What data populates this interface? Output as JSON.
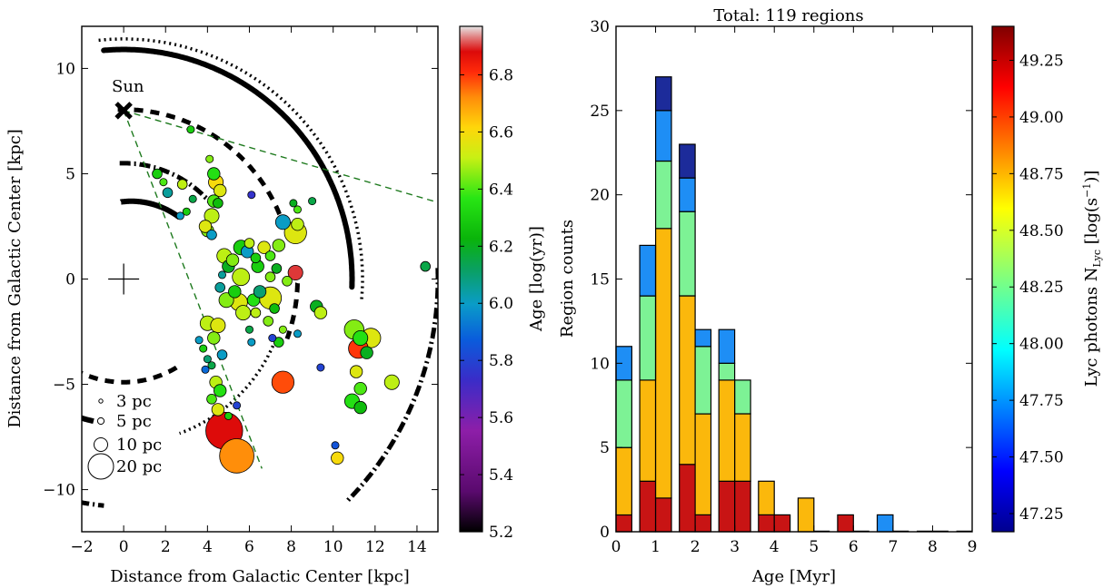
{
  "chart_data": [
    {
      "type": "scatter",
      "title": "",
      "xlabel": "Distance from Galactic Center [kpc]",
      "ylabel": "Distance from Galactic Center [kpc]",
      "xlim": [
        -2,
        15
      ],
      "ylim": [
        -12,
        12
      ],
      "x_ticks": [
        "−2",
        "0",
        "2",
        "4",
        "6",
        "8",
        "10",
        "12",
        "14"
      ],
      "y_ticks": [
        "−10",
        "−5",
        "0",
        "5",
        "10"
      ],
      "sun_label": "Sun",
      "sun_position": [
        0,
        8
      ],
      "galactic_center": [
        0,
        0
      ],
      "colorbar": {
        "label": "Age [log(yr)]",
        "range": [
          5.2,
          6.97
        ],
        "ticks": [
          "5.2",
          "5.4",
          "5.6",
          "5.8",
          "6.0",
          "6.2",
          "6.4",
          "6.6",
          "6.8"
        ]
      },
      "size_legend": [
        "3 pc",
        "5 pc",
        "10 pc",
        "20 pc"
      ],
      "points": [
        {
          "x": 3.2,
          "y": 7.1,
          "size": 3,
          "age": 6.3
        },
        {
          "x": 4.1,
          "y": 5.7,
          "size": 3,
          "age": 6.45
        },
        {
          "x": 4.3,
          "y": 5.0,
          "size": 5,
          "age": 6.35
        },
        {
          "x": 4.4,
          "y": 4.6,
          "size": 6,
          "age": 6.6
        },
        {
          "x": 4.6,
          "y": 4.2,
          "size": 5,
          "age": 6.55
        },
        {
          "x": 4.3,
          "y": 3.7,
          "size": 5,
          "age": 6.4
        },
        {
          "x": 4.5,
          "y": 3.6,
          "size": 4,
          "age": 6.25
        },
        {
          "x": 4.2,
          "y": 3.0,
          "size": 6,
          "age": 6.5
        },
        {
          "x": 1.6,
          "y": 5.0,
          "size": 4,
          "age": 6.3
        },
        {
          "x": 1.9,
          "y": 4.6,
          "size": 3,
          "age": 6.4
        },
        {
          "x": 2.1,
          "y": 4.1,
          "size": 4,
          "age": 6.05
        },
        {
          "x": 2.8,
          "y": 4.5,
          "size": 4,
          "age": 6.5
        },
        {
          "x": 3.3,
          "y": 3.8,
          "size": 3,
          "age": 6.15
        },
        {
          "x": 3.0,
          "y": 3.2,
          "size": 3,
          "age": 6.3
        },
        {
          "x": 2.7,
          "y": 3.0,
          "size": 3,
          "age": 6.0
        },
        {
          "x": 4.0,
          "y": 2.3,
          "size": 5,
          "age": 6.45
        },
        {
          "x": 4.2,
          "y": 2.1,
          "size": 4,
          "age": 6.0
        },
        {
          "x": 3.9,
          "y": 2.5,
          "size": 5,
          "age": 6.55
        },
        {
          "x": 4.8,
          "y": 1.1,
          "size": 6,
          "age": 6.5
        },
        {
          "x": 5.0,
          "y": 0.6,
          "size": 5,
          "age": 6.2
        },
        {
          "x": 5.2,
          "y": 0.9,
          "size": 5,
          "age": 6.45
        },
        {
          "x": 5.6,
          "y": 1.5,
          "size": 6,
          "age": 6.3
        },
        {
          "x": 5.9,
          "y": 1.3,
          "size": 5,
          "age": 6.0
        },
        {
          "x": 6.0,
          "y": 1.7,
          "size": 4,
          "age": 6.5
        },
        {
          "x": 6.3,
          "y": 1.0,
          "size": 4,
          "age": 6.3
        },
        {
          "x": 6.7,
          "y": 1.5,
          "size": 5,
          "age": 6.55
        },
        {
          "x": 7.0,
          "y": 1.1,
          "size": 4,
          "age": 6.4
        },
        {
          "x": 7.4,
          "y": 1.6,
          "size": 5,
          "age": 6.45
        },
        {
          "x": 7.6,
          "y": 2.7,
          "size": 6,
          "age": 6.0
        },
        {
          "x": 8.2,
          "y": 2.2,
          "size": 9,
          "age": 6.55
        },
        {
          "x": 8.3,
          "y": 2.6,
          "size": 5,
          "age": 6.5
        },
        {
          "x": 8.3,
          "y": 3.3,
          "size": 3,
          "age": 6.4
        },
        {
          "x": 8.1,
          "y": 3.6,
          "size": 3,
          "age": 6.2
        },
        {
          "x": 9.0,
          "y": 3.7,
          "size": 3,
          "age": 6.15
        },
        {
          "x": 6.1,
          "y": 4.0,
          "size": 3,
          "age": 5.75
        },
        {
          "x": 4.7,
          "y": 0.2,
          "size": 3,
          "age": 6.05
        },
        {
          "x": 5.6,
          "y": 0.1,
          "size": 7,
          "age": 6.5
        },
        {
          "x": 6.4,
          "y": 0.6,
          "size": 5,
          "age": 6.3
        },
        {
          "x": 7.0,
          "y": 0.1,
          "size": 4,
          "age": 6.45
        },
        {
          "x": 7.3,
          "y": 0.5,
          "size": 4,
          "age": 6.2
        },
        {
          "x": 8.2,
          "y": 0.3,
          "size": 6,
          "age": 6.9
        },
        {
          "x": 7.8,
          "y": -0.1,
          "size": 4,
          "age": 6.45
        },
        {
          "x": 4.6,
          "y": -0.4,
          "size": 4,
          "age": 6.05
        },
        {
          "x": 4.9,
          "y": -1.0,
          "size": 6,
          "age": 6.45
        },
        {
          "x": 5.3,
          "y": -0.6,
          "size": 5,
          "age": 6.3
        },
        {
          "x": 5.5,
          "y": -1.1,
          "size": 7,
          "age": 6.55
        },
        {
          "x": 5.7,
          "y": -1.6,
          "size": 6,
          "age": 6.5
        },
        {
          "x": 6.2,
          "y": -1.0,
          "size": 5,
          "age": 6.35
        },
        {
          "x": 6.5,
          "y": -0.6,
          "size": 5,
          "age": 6.1
        },
        {
          "x": 7.0,
          "y": -0.9,
          "size": 9,
          "age": 6.55
        },
        {
          "x": 6.3,
          "y": -1.6,
          "size": 4,
          "age": 6.5
        },
        {
          "x": 7.2,
          "y": -1.4,
          "size": 4,
          "age": 6.25
        },
        {
          "x": 6.9,
          "y": -2.0,
          "size": 4,
          "age": 6.45
        },
        {
          "x": 6.0,
          "y": -2.4,
          "size": 3,
          "age": 6.15
        },
        {
          "x": 6.1,
          "y": -3.0,
          "size": 3,
          "age": 6.0
        },
        {
          "x": 7.1,
          "y": -2.8,
          "size": 3,
          "age": 5.8
        },
        {
          "x": 7.4,
          "y": -3.0,
          "size": 4,
          "age": 6.3
        },
        {
          "x": 8.3,
          "y": -2.6,
          "size": 3,
          "age": 6.0
        },
        {
          "x": 9.2,
          "y": -1.3,
          "size": 5,
          "age": 6.2
        },
        {
          "x": 9.4,
          "y": -1.6,
          "size": 5,
          "age": 6.5
        },
        {
          "x": 14.4,
          "y": 0.6,
          "size": 4,
          "age": 6.15
        },
        {
          "x": 4.0,
          "y": -2.1,
          "size": 6,
          "age": 6.5
        },
        {
          "x": 4.5,
          "y": -2.2,
          "size": 6,
          "age": 6.55
        },
        {
          "x": 4.3,
          "y": -2.8,
          "size": 5,
          "age": 6.45
        },
        {
          "x": 3.6,
          "y": -2.9,
          "size": 3,
          "age": 6.0
        },
        {
          "x": 3.8,
          "y": -3.3,
          "size": 3,
          "age": 6.3
        },
        {
          "x": 4.0,
          "y": -3.8,
          "size": 3,
          "age": 6.1
        },
        {
          "x": 4.2,
          "y": -4.1,
          "size": 3,
          "age": 6.15
        },
        {
          "x": 4.7,
          "y": -3.6,
          "size": 4,
          "age": 6.0
        },
        {
          "x": 3.9,
          "y": -4.3,
          "size": 3,
          "age": 5.9
        },
        {
          "x": 4.4,
          "y": -4.9,
          "size": 5,
          "age": 6.5
        },
        {
          "x": 4.6,
          "y": -5.3,
          "size": 5,
          "age": 6.35
        },
        {
          "x": 4.2,
          "y": -5.7,
          "size": 4,
          "age": 6.4
        },
        {
          "x": 4.5,
          "y": -6.2,
          "size": 5,
          "age": 6.55
        },
        {
          "x": 5.0,
          "y": -6.5,
          "size": 3,
          "age": 6.3
        },
        {
          "x": 5.4,
          "y": -6.0,
          "size": 3,
          "age": 5.8
        },
        {
          "x": 4.8,
          "y": -7.2,
          "size": 15,
          "age": 6.88
        },
        {
          "x": 5.4,
          "y": -8.4,
          "size": 14,
          "age": 6.72
        },
        {
          "x": 7.6,
          "y": -4.9,
          "size": 9,
          "age": 6.78
        },
        {
          "x": 9.4,
          "y": -4.2,
          "size": 3,
          "age": 5.8
        },
        {
          "x": 11.0,
          "y": -2.4,
          "size": 8,
          "age": 6.45
        },
        {
          "x": 11.3,
          "y": -2.8,
          "size": 6,
          "age": 6.35
        },
        {
          "x": 11.8,
          "y": -2.8,
          "size": 8,
          "age": 6.55
        },
        {
          "x": 11.2,
          "y": -3.3,
          "size": 8,
          "age": 6.8
        },
        {
          "x": 11.6,
          "y": -3.5,
          "size": 5,
          "age": 6.2
        },
        {
          "x": 11.1,
          "y": -4.4,
          "size": 5,
          "age": 6.55
        },
        {
          "x": 11.3,
          "y": -5.2,
          "size": 5,
          "age": 6.4
        },
        {
          "x": 10.9,
          "y": -5.8,
          "size": 6,
          "age": 6.35
        },
        {
          "x": 11.3,
          "y": -6.1,
          "size": 5,
          "age": 6.25
        },
        {
          "x": 12.8,
          "y": -4.9,
          "size": 6,
          "age": 6.5
        },
        {
          "x": 10.2,
          "y": -8.5,
          "size": 5,
          "age": 6.6
        },
        {
          "x": 10.1,
          "y": -7.9,
          "size": 3,
          "age": 5.85
        },
        {
          "x": 7.6,
          "y": -2.4,
          "size": 3,
          "age": 6.45
        }
      ]
    },
    {
      "type": "bar",
      "stacked": true,
      "title": "Total: 119 regions",
      "xlabel": "Age [Myr]",
      "ylabel": "Region counts",
      "xlim": [
        0,
        9
      ],
      "ylim": [
        0,
        30
      ],
      "x_ticks": [
        "0",
        "1",
        "2",
        "3",
        "4",
        "5",
        "6",
        "7",
        "8",
        "9"
      ],
      "y_ticks": [
        "0",
        "5",
        "10",
        "15",
        "20",
        "25",
        "30"
      ],
      "bin_width": 0.4,
      "bin_starts": [
        0.0,
        0.6,
        1.0,
        1.6,
        2.0,
        2.6,
        3.0,
        3.6,
        4.0,
        4.6,
        5.0,
        5.6,
        6.0,
        6.6,
        7.0,
        7.6,
        8.0,
        8.6
      ],
      "colorbar": {
        "label": "Lyc photons N",
        "label_sub": "Lyc",
        "label_tail": " [log(s",
        "label_sup": "−1",
        "label_end": ")]",
        "range": [
          47.17,
          49.4
        ],
        "ticks": [
          "47.25",
          "47.50",
          "47.75",
          "48.00",
          "48.25",
          "48.50",
          "48.75",
          "49.00",
          "49.25"
        ]
      },
      "series": [
        {
          "name": "",
          "color": "#c81414",
          "values": [
            1,
            3,
            2,
            4,
            1,
            3,
            3,
            1,
            1,
            0,
            0,
            1,
            0,
            0,
            0,
            0,
            0,
            0
          ]
        },
        {
          "name": "",
          "color": "#fbb80c",
          "values": [
            4,
            6,
            16,
            10,
            6,
            6,
            4,
            2,
            0,
            2,
            0,
            0,
            0,
            0,
            0,
            0,
            0,
            0
          ]
        },
        {
          "name": "",
          "color": "#7df295",
          "values": [
            4,
            5,
            4,
            5,
            4,
            1,
            2,
            0,
            0,
            0,
            0,
            0,
            0,
            0,
            0,
            0,
            0,
            0
          ]
        },
        {
          "name": "",
          "color": "#1e8ef5",
          "values": [
            2,
            3,
            3,
            2,
            1,
            2,
            0,
            0,
            0,
            0,
            0,
            0,
            0,
            1,
            0,
            0,
            0,
            0
          ]
        },
        {
          "name": "",
          "color": "#1c2b9a",
          "values": [
            0,
            0,
            2,
            2,
            0,
            0,
            0,
            0,
            0,
            0,
            0,
            0,
            0,
            0,
            0,
            0,
            0,
            0
          ]
        }
      ]
    }
  ]
}
